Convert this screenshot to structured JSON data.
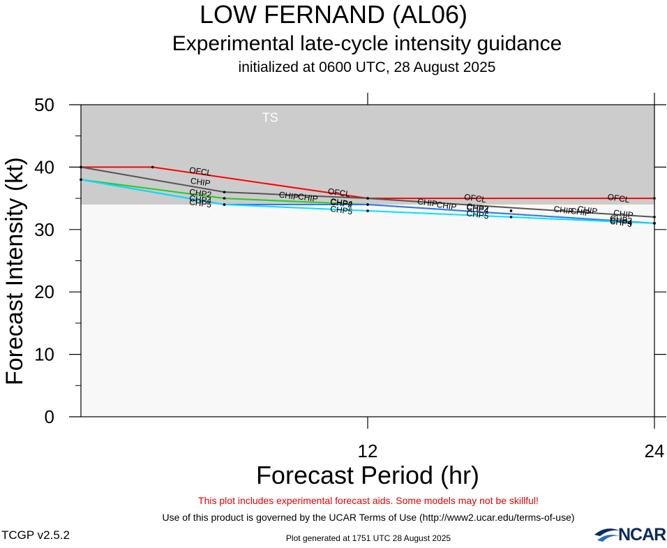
{
  "header": {
    "title": "LOW FERNAND (AL06)",
    "subtitle": "Experimental late-cycle intensity guidance",
    "init": "initialized at 0600 UTC, 28 August 2025"
  },
  "footer": {
    "disclaimer": "This plot includes experimental forecast aids. Some models may not be skillful!",
    "terms": "Use of this product is governed by the UCAR Terms of Use (http://www2.ucar.edu/terms-of-use)",
    "version": "TCGP v2.5.2",
    "generated": "Plot generated at 1751 UTC   28 August 2025",
    "logo_text": "NCAR"
  },
  "chart_data": {
    "type": "line",
    "xlabel": "Forecast Period (hr)",
    "ylabel": "Forecast Intensity (kt)",
    "xlim": [
      0,
      24
    ],
    "ylim": [
      0,
      50
    ],
    "x_ticks": [
      12,
      24
    ],
    "y_ticks": [
      0,
      10,
      20,
      30,
      40,
      50
    ],
    "bands": [
      {
        "label": "TS",
        "from": 34,
        "to": 50,
        "color": "#cccccc"
      },
      {
        "label": "",
        "from": 0,
        "to": 34,
        "color": "#f8f8f8"
      }
    ],
    "series": [
      {
        "name": "OFCL",
        "color": "#ff0000",
        "x": [
          0,
          3,
          12,
          24
        ],
        "y": [
          40,
          40,
          35,
          35
        ],
        "labels": [
          [
            5,
            39.3
          ],
          [
            10.8,
            35.9
          ],
          [
            16.5,
            35
          ],
          [
            22.5,
            35
          ]
        ]
      },
      {
        "name": "CHIP",
        "color": "#555555",
        "x": [
          0,
          6,
          12,
          24
        ],
        "y": [
          40,
          36,
          35,
          32
        ],
        "labels": [
          [
            5,
            37.6
          ],
          [
            8.7,
            35.4
          ],
          [
            9.5,
            35.1
          ],
          [
            14.5,
            34.3
          ],
          [
            15.3,
            33.8
          ],
          [
            20.2,
            33.1
          ],
          [
            20.9,
            32.8
          ],
          [
            21.2,
            33.1
          ],
          [
            22.7,
            32.5
          ]
        ]
      },
      {
        "name": "CHP2",
        "color": "#22cc22",
        "x": [
          0,
          6,
          12,
          24
        ],
        "y": [
          38,
          35,
          34,
          31
        ],
        "labels": [
          [
            5,
            35.8
          ],
          [
            10.9,
            34.2
          ],
          [
            16.6,
            33.5
          ],
          [
            22.6,
            31.6
          ]
        ]
      },
      {
        "name": "CHP4",
        "color": "#3377ff",
        "x": [
          0,
          6,
          12,
          24
        ],
        "y": [
          38,
          34,
          34,
          31
        ],
        "labels": [
          [
            5,
            34.8
          ],
          [
            10.9,
            34.3
          ],
          [
            16.6,
            33.3
          ],
          [
            22.6,
            31.3
          ]
        ]
      },
      {
        "name": "CHP5",
        "color": "#00e0ff",
        "x": [
          0,
          6,
          12,
          24
        ],
        "y": [
          38,
          34,
          33,
          31
        ],
        "labels": [
          [
            5,
            34.2
          ],
          [
            10.9,
            33.1
          ],
          [
            16.6,
            32.4
          ],
          [
            22.6,
            31.1
          ]
        ]
      }
    ],
    "midpoints": [
      {
        "x": 18,
        "y": 33
      },
      {
        "x": 18,
        "y": 32
      },
      {
        "x": 23,
        "y": 31
      }
    ]
  }
}
